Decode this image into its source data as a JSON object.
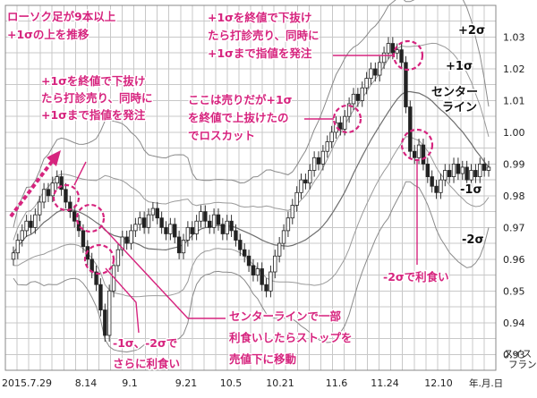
{
  "chart_data": {
    "type": "candlestick",
    "title": "",
    "xlabel": "年.月.日",
    "ylabel": "スイスフラン",
    "ylim": [
      0.925,
      1.04
    ],
    "y_ticks": [
      "1.03",
      "1.02",
      "1.01",
      "1.00",
      "0.99",
      "0.98",
      "0.97",
      "0.96",
      "0.95",
      "0.94",
      "0.93"
    ],
    "x_ticks": [
      "2015.7.29",
      "8.14",
      "9.1",
      "9.21",
      "10.5",
      "10.21",
      "11.6",
      "11.24",
      "12.10"
    ],
    "band_labels": [
      "+2σ",
      "+1σ",
      "センターライン",
      "-1σ",
      "-2σ"
    ],
    "closes": [
      0.962,
      0.966,
      0.969,
      0.972,
      0.97,
      0.974,
      0.978,
      0.982,
      0.98,
      0.984,
      0.986,
      0.982,
      0.978,
      0.975,
      0.972,
      0.969,
      0.964,
      0.96,
      0.956,
      0.952,
      0.944,
      0.936,
      0.95,
      0.958,
      0.963,
      0.967,
      0.965,
      0.969,
      0.971,
      0.973,
      0.97,
      0.974,
      0.976,
      0.973,
      0.97,
      0.968,
      0.971,
      0.967,
      0.962,
      0.966,
      0.97,
      0.968,
      0.972,
      0.975,
      0.972,
      0.97,
      0.974,
      0.971,
      0.968,
      0.972,
      0.969,
      0.966,
      0.963,
      0.961,
      0.958,
      0.955,
      0.957,
      0.952,
      0.95,
      0.956,
      0.961,
      0.965,
      0.969,
      0.973,
      0.977,
      0.981,
      0.985,
      0.984,
      0.988,
      0.992,
      0.99,
      0.994,
      0.997,
      1.0,
      1.003,
      1.001,
      1.005,
      1.009,
      1.012,
      1.01,
      1.014,
      1.017,
      1.02,
      1.018,
      1.022,
      1.025,
      1.028,
      1.025,
      1.026,
      1.022,
      1.008,
      0.994,
      0.992,
      0.996,
      0.99,
      0.986,
      0.983,
      0.981,
      0.985,
      0.988,
      0.986,
      0.99,
      0.987,
      0.989,
      0.985,
      0.988,
      0.986,
      0.99,
      0.988,
      0.989
    ],
    "annotations": {
      "a1": [
        "ローソク足が9本以上",
        "+1σの上を推移"
      ],
      "a2": [
        "+1σを終値で下抜け",
        "たら打診売り、同時に",
        "+1σまで指値を発注"
      ],
      "a3": [
        "ここは売りだが+1σ",
        "を終値で上抜けたの",
        "でロスカット"
      ],
      "a4": [
        "+1σを終値で下抜け",
        "たら打診売り、同時に",
        "+1σまで指値を発注"
      ],
      "a5": [
        "センターラインで一部",
        "利食いしたらストップを",
        "売値下に移動"
      ],
      "a6": [
        "-1σ、-2σで",
        "さらに利食い"
      ],
      "a7": [
        "-2σで利食い"
      ]
    },
    "colors": {
      "annotation": "#d6247e",
      "up": "#ffffff",
      "down": "#222222",
      "grid": "#c8c8c8"
    }
  }
}
